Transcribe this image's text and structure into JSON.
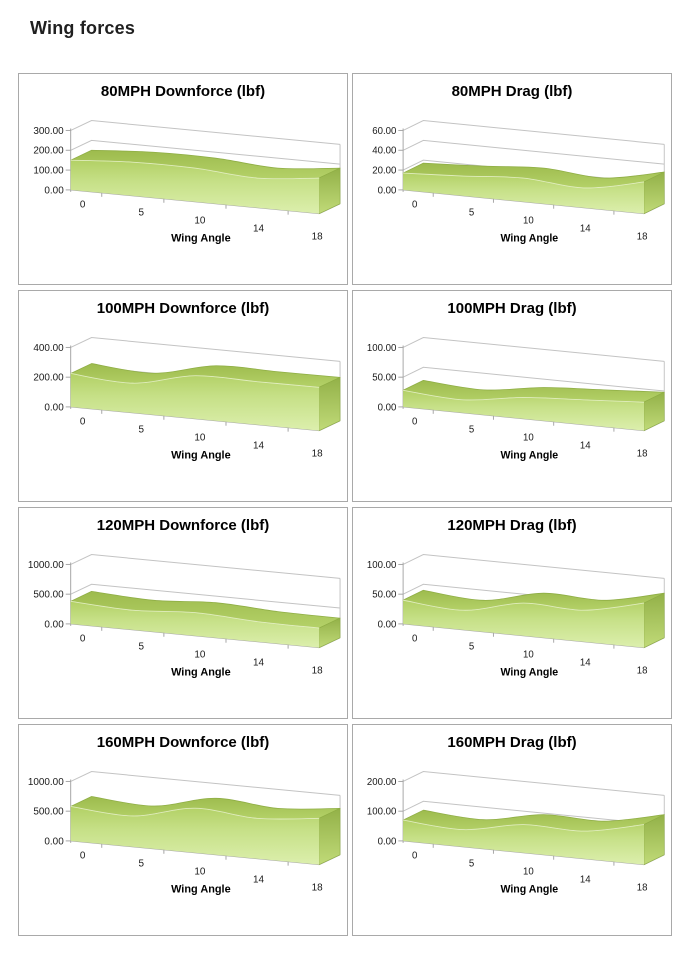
{
  "page": {
    "title": "Wing forces"
  },
  "axis": {
    "xlabel": "Wing Angle",
    "categories": [
      "0",
      "5",
      "10",
      "14",
      "18"
    ]
  },
  "colors": {
    "box_border": "#a9a9a9",
    "grid_line": "#c3c3c3",
    "axis_line": "#a6a6a6",
    "tick_text": "#1a1a1a",
    "title_text": "#000000",
    "area_face_top": "#b2d065",
    "area_face_mid": "#c6e087",
    "area_face_bottom": "#dcefad",
    "band_dark": "#9dbb4d",
    "band_light": "#b4d168",
    "cap_top": "#93b148",
    "cap_bottom": "#c0da78",
    "edge_line": "#8fae45",
    "highlight_line": "#ebf4cf"
  },
  "chart_data": [
    {
      "type": "area",
      "title": "80MPH Downforce (lbf)",
      "xlabel": "Wing Angle",
      "categories": [
        "0",
        "5",
        "10",
        "14",
        "18"
      ],
      "values": [
        150,
        170,
        170,
        150,
        180
      ],
      "ylim": [
        0,
        300
      ],
      "yticks": [
        "0.00",
        "100.00",
        "200.00",
        "300.00"
      ],
      "grid": true,
      "legend": "none"
    },
    {
      "type": "area",
      "title": "80MPH Drag (lbf)",
      "xlabel": "Wing Angle",
      "categories": [
        "0",
        "5",
        "10",
        "14",
        "18"
      ],
      "values": [
        17,
        20,
        24,
        20,
        32
      ],
      "ylim": [
        0,
        60
      ],
      "yticks": [
        "0.00",
        "20.00",
        "40.00",
        "60.00"
      ],
      "grid": true,
      "legend": "none"
    },
    {
      "type": "area",
      "title": "100MPH Downforce (lbf)",
      "xlabel": "Wing Angle",
      "categories": [
        "0",
        "5",
        "10",
        "14",
        "18"
      ],
      "values": [
        225,
        200,
        290,
        290,
        292
      ],
      "ylim": [
        0,
        400
      ],
      "yticks": [
        "0.00",
        "200.00",
        "400.00"
      ],
      "grid": true,
      "legend": "none"
    },
    {
      "type": "area",
      "title": "100MPH Drag (lbf)",
      "xlabel": "Wing Angle",
      "categories": [
        "0",
        "5",
        "10",
        "14",
        "18"
      ],
      "values": [
        28,
        22,
        36,
        42,
        48
      ],
      "ylim": [
        0,
        100
      ],
      "yticks": [
        "0.00",
        "50.00",
        "100.00"
      ],
      "grid": true,
      "legend": "none"
    },
    {
      "type": "area",
      "title": "120MPH Downforce (lbf)",
      "xlabel": "Wing Angle",
      "categories": [
        "0",
        "5",
        "10",
        "14",
        "18"
      ],
      "values": [
        380,
        330,
        390,
        340,
        330
      ],
      "ylim": [
        0,
        1000
      ],
      "yticks": [
        "0.00",
        "500.00",
        "1000.00"
      ],
      "grid": true,
      "legend": "none"
    },
    {
      "type": "area",
      "title": "120MPH Drag (lbf)",
      "xlabel": "Wing Angle",
      "categories": [
        "0",
        "5",
        "10",
        "14",
        "18"
      ],
      "values": [
        40,
        33,
        55,
        53,
        75
      ],
      "ylim": [
        0,
        100
      ],
      "yticks": [
        "0.00",
        "50.00",
        "100.00"
      ],
      "grid": true,
      "legend": "none"
    },
    {
      "type": "area",
      "title": "160MPH Downforce (lbf)",
      "xlabel": "Wing Angle",
      "categories": [
        "0",
        "5",
        "10",
        "14",
        "18"
      ],
      "values": [
        580,
        520,
        750,
        680,
        780
      ],
      "ylim": [
        0,
        1000
      ],
      "yticks": [
        "0.00",
        "500.00",
        "1000.00"
      ],
      "grid": true,
      "legend": "none"
    },
    {
      "type": "area",
      "title": "160MPH Drag (lbf)",
      "xlabel": "Wing Angle",
      "categories": [
        "0",
        "5",
        "10",
        "14",
        "18"
      ],
      "values": [
        70,
        58,
        95,
        93,
        135
      ],
      "ylim": [
        0,
        200
      ],
      "yticks": [
        "0.00",
        "100.00",
        "200.00"
      ],
      "grid": true,
      "legend": "none"
    }
  ]
}
